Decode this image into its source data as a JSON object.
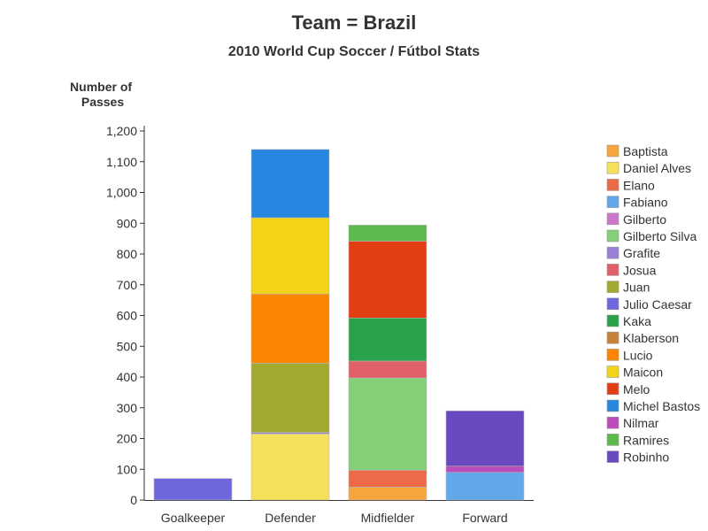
{
  "chart_data": {
    "type": "bar",
    "stacked": true,
    "title": "Team = Brazil",
    "subtitle": "2010 World Cup Soccer / Fútbol Stats",
    "xlabel": "",
    "ylabel": "Number of Passes",
    "ylabel_lines": [
      "Number of",
      "Passes"
    ],
    "ylim": [
      0,
      1200
    ],
    "yticks": [
      0,
      100,
      200,
      300,
      400,
      500,
      600,
      700,
      800,
      900,
      1000,
      1100,
      1200
    ],
    "ytick_labels": [
      "0",
      "100",
      "200",
      "300",
      "400",
      "500",
      "600",
      "700",
      "800",
      "900",
      "1,000",
      "1,100",
      "1,200"
    ],
    "grid": false,
    "legend_position": "right",
    "categories": [
      "Goalkeeper",
      "Defender",
      "Midfielder",
      "Forward"
    ],
    "series": [
      {
        "name": "Baptista",
        "color": "#f6a53c",
        "values": [
          0,
          0,
          42,
          0
        ]
      },
      {
        "name": "Daniel Alves",
        "color": "#f7e05a",
        "values": [
          0,
          215,
          0,
          0
        ]
      },
      {
        "name": "Elano",
        "color": "#ec6a48",
        "values": [
          0,
          0,
          55,
          0
        ]
      },
      {
        "name": "Fabiano",
        "color": "#62a8e8",
        "values": [
          0,
          0,
          0,
          90
        ]
      },
      {
        "name": "Gilberto",
        "color": "#cc77cc",
        "values": [
          0,
          0,
          0,
          0
        ]
      },
      {
        "name": "Gilberto Silva",
        "color": "#85cf78",
        "values": [
          0,
          0,
          300,
          0
        ]
      },
      {
        "name": "Grafite",
        "color": "#9b7fd4",
        "values": [
          0,
          5,
          0,
          0
        ]
      },
      {
        "name": "Josua",
        "color": "#e0606a",
        "values": [
          0,
          0,
          55,
          0
        ]
      },
      {
        "name": "Juan",
        "color": "#a2aa2f",
        "values": [
          0,
          225,
          0,
          0
        ]
      },
      {
        "name": "Julio Caesar",
        "color": "#6f67dc",
        "values": [
          70,
          0,
          0,
          0
        ]
      },
      {
        "name": "Kaka",
        "color": "#2aa14b",
        "values": [
          0,
          0,
          140,
          0
        ]
      },
      {
        "name": "Klaberson",
        "color": "#c6813a",
        "values": [
          0,
          0,
          0,
          0
        ]
      },
      {
        "name": "Lucio",
        "color": "#fb8500",
        "values": [
          0,
          225,
          0,
          0
        ]
      },
      {
        "name": "Maicon",
        "color": "#f2d318",
        "values": [
          0,
          248,
          0,
          0
        ]
      },
      {
        "name": "Melo",
        "color": "#e33d14",
        "values": [
          0,
          0,
          250,
          0
        ]
      },
      {
        "name": "Michel Bastos",
        "color": "#2686e0",
        "values": [
          0,
          222,
          0,
          0
        ]
      },
      {
        "name": "Nilmar",
        "color": "#bb4cb9",
        "values": [
          0,
          0,
          0,
          20
        ]
      },
      {
        "name": "Ramires",
        "color": "#5cba4c",
        "values": [
          0,
          0,
          52,
          0
        ]
      },
      {
        "name": "Robinho",
        "color": "#6a48c0",
        "values": [
          0,
          0,
          0,
          180
        ]
      }
    ]
  }
}
